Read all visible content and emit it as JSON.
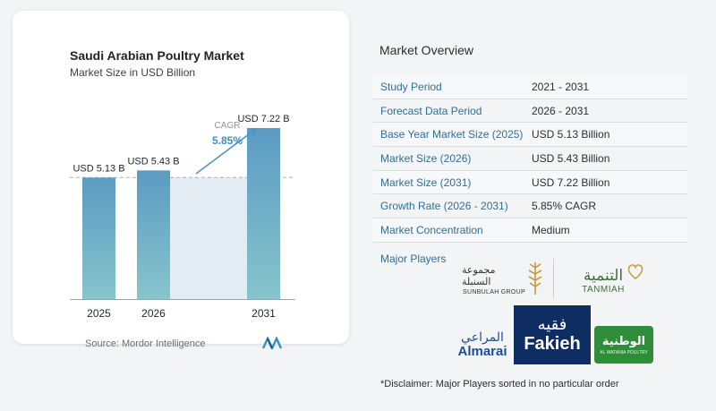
{
  "chart": {
    "title": "Saudi Arabian Poultry Market",
    "subtitle": "Market Size in USD Billion",
    "source": "Source:  Mordor Intelligence"
  },
  "chart_data": {
    "type": "bar",
    "categories": [
      "2025",
      "2026",
      "2031"
    ],
    "values": [
      5.13,
      5.43,
      7.22
    ],
    "value_labels": [
      "USD 5.13 B",
      "USD 5.43 B",
      "USD 7.22 B"
    ],
    "cagr_label": "CAGR",
    "cagr_value": "5.85%",
    "title": "Saudi Arabian Poultry Market",
    "subtitle": "Market Size in USD Billion",
    "ylim": [
      0,
      7.22
    ],
    "colors": {
      "bar_top": "#5b9bc3",
      "bar_bottom": "#87c4cc",
      "shade": "#e3ecf3",
      "arrow": "#4f95c4",
      "cagr_text": "#3f8fc2",
      "baseline": "#9aa3ab"
    }
  },
  "overview": {
    "title": "Market Overview",
    "rows": [
      {
        "label": "Study Period",
        "value": "2021 - 2031"
      },
      {
        "label": "Forecast Data Period",
        "value": "2026 - 2031"
      },
      {
        "label": "Base Year Market Size (2025)",
        "value": "USD 5.13 Billion"
      },
      {
        "label": "Market Size (2026)",
        "value": "USD 5.43 Billion"
      },
      {
        "label": "Market Size (2031)",
        "value": "USD 7.22 Billion"
      },
      {
        "label": "Growth Rate (2026 - 2031)",
        "value": "5.85% CAGR"
      },
      {
        "label": "Market Concentration",
        "value": "Medium"
      }
    ],
    "players_label": "Major Players",
    "disclaimer": "*Disclaimer: Major Players sorted in no particular order"
  },
  "players": {
    "sunbulah": {
      "ar": "مجموعة السنبلة",
      "en": "SUNBULAH GROUP"
    },
    "tanmiah": {
      "ar": "التنمية",
      "en": "TANMIAH"
    },
    "almarai": {
      "ar": "المراعي",
      "en": "Almarai"
    },
    "fakieh": {
      "ar": "فقيه",
      "en": "Fakieh"
    },
    "alwatania": {
      "ar": "الوطنية",
      "en": "AL WATANIA POULTRY"
    }
  }
}
